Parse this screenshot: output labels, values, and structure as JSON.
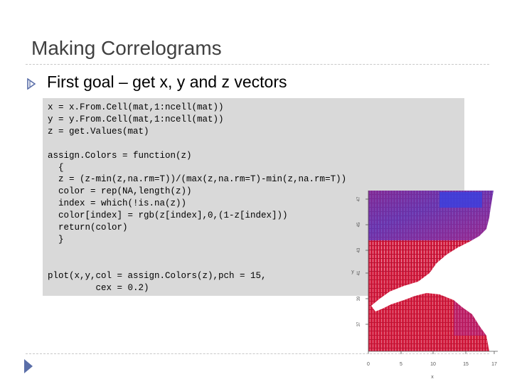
{
  "slide": {
    "title": "Making Correlograms",
    "bullet": "First goal – get x, y and z vectors",
    "code_lines": [
      "x = x.From.Cell(mat,1:ncell(mat))",
      "y = y.From.Cell(mat,1:ncell(mat))",
      "z = get.Values(mat)",
      "",
      "assign.Colors = function(z)",
      "  {",
      "  z = (z-min(z,na.rm=T))/(max(z,na.rm=T)-min(z,na.rm=T))",
      "  color = rep(NA,length(z))",
      "  index = which(!is.na(z))",
      "  color[index] = rgb(z[index],0,(1-z[index]))",
      "  return(color)",
      "  }",
      "",
      "",
      "plot(x,y,col = assign.Colors(z),pch = 15,",
      "         cex = 0.2)"
    ]
  },
  "plot": {
    "x_ticks": [
      "0",
      "5",
      "10",
      "15",
      "17"
    ],
    "y_ticks": [
      "47",
      "45",
      "43",
      "41",
      "39",
      "37"
    ],
    "xlabel": "x",
    "ylabel": "y",
    "colors": {
      "red": "#d8183a",
      "blue": "#5a3ac8",
      "land": "#ffffff"
    }
  },
  "theme": {
    "bullet_color": "#5a6ea8",
    "code_bg": "#d9d9d9",
    "nav_color": "#5a6ea8"
  },
  "icons": {
    "bullet": "bullet-icon",
    "nav": "slide-nav-icon"
  }
}
